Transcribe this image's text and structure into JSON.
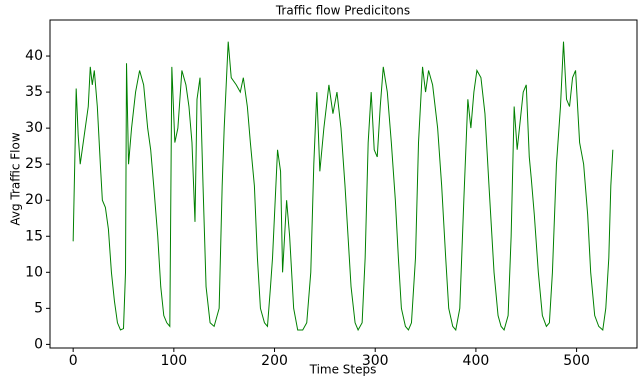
{
  "chart_data": {
    "type": "line",
    "title": "Traffic flow Predicitons",
    "x_label": "Time Steps",
    "y_label": "Avg Traffic Flow",
    "xlim": [
      -23,
      560
    ],
    "ylim": [
      -0.5,
      45
    ],
    "xticks": [
      0,
      100,
      200,
      300,
      400,
      500
    ],
    "yticks": [
      0,
      5,
      10,
      15,
      20,
      25,
      30,
      35,
      40
    ],
    "x": [
      0,
      2,
      3,
      5,
      7,
      9,
      12,
      15,
      17,
      19,
      21,
      24,
      27,
      29,
      32,
      35,
      38,
      41,
      44,
      47,
      50,
      52,
      53,
      55,
      58,
      62,
      66,
      70,
      74,
      77,
      80,
      84,
      87,
      90,
      93,
      96,
      98,
      101,
      104,
      108,
      112,
      115,
      118,
      121,
      123,
      126,
      129,
      132,
      136,
      140,
      145,
      148,
      150,
      152,
      154,
      157,
      162,
      166,
      169,
      173,
      176,
      180,
      183,
      186,
      190,
      193,
      196,
      198,
      200,
      203,
      206,
      208,
      212,
      215,
      219,
      223,
      228,
      232,
      236,
      239,
      242,
      245,
      249,
      254,
      258,
      262,
      266,
      270,
      273,
      276,
      280,
      283,
      287,
      290,
      293,
      296,
      299,
      302,
      305,
      308,
      312,
      316,
      320,
      323,
      326,
      330,
      333,
      336,
      340,
      343,
      347,
      350,
      353,
      357,
      362,
      366,
      370,
      373,
      377,
      380,
      384,
      388,
      392,
      395,
      398,
      401,
      405,
      409,
      413,
      418,
      422,
      425,
      428,
      432,
      435,
      438,
      441,
      444,
      447,
      450,
      453,
      455,
      458,
      462,
      466,
      470,
      473,
      476,
      480,
      484,
      487,
      490,
      493,
      496,
      499,
      503,
      507,
      511,
      514,
      518,
      522,
      526,
      529,
      532,
      534,
      536
    ],
    "series": [
      {
        "color": "#008000",
        "values": [
          14.3,
          28,
          35.5,
          29,
          25,
          27,
          30,
          33,
          38.5,
          36,
          38,
          33,
          25,
          20,
          19,
          16,
          10,
          6,
          3,
          2,
          2.2,
          10,
          39,
          25,
          30,
          35,
          38,
          36,
          30,
          27,
          22,
          15,
          8,
          4,
          3,
          2.5,
          38.5,
          28,
          30,
          38,
          36,
          33,
          28,
          17,
          34,
          37,
          22,
          8,
          3,
          2.5,
          5,
          22,
          30,
          36,
          42,
          37,
          36,
          35,
          37,
          33,
          28,
          22,
          12,
          5,
          3,
          2.5,
          8,
          12,
          18,
          27,
          24,
          10,
          20,
          15,
          5,
          2,
          2,
          3,
          10,
          25,
          35,
          24,
          30,
          36,
          32,
          35,
          30,
          22,
          15,
          8,
          3,
          2,
          3,
          12,
          28,
          35,
          27,
          26,
          33,
          38.5,
          35,
          28,
          20,
          12,
          5,
          2.5,
          2,
          3,
          12,
          28,
          38.5,
          35,
          38,
          36,
          30,
          22,
          12,
          5,
          2.5,
          2,
          5,
          20,
          34,
          30,
          35,
          38,
          37,
          32,
          22,
          10,
          4,
          2.5,
          2,
          4,
          15,
          33,
          27,
          31,
          35,
          36,
          26,
          23,
          18,
          10,
          4,
          2.5,
          3,
          10,
          25,
          33,
          42,
          34,
          33,
          37,
          38,
          28,
          25,
          18,
          10,
          4,
          2.5,
          2,
          5,
          12,
          22,
          27
        ]
      }
    ]
  }
}
